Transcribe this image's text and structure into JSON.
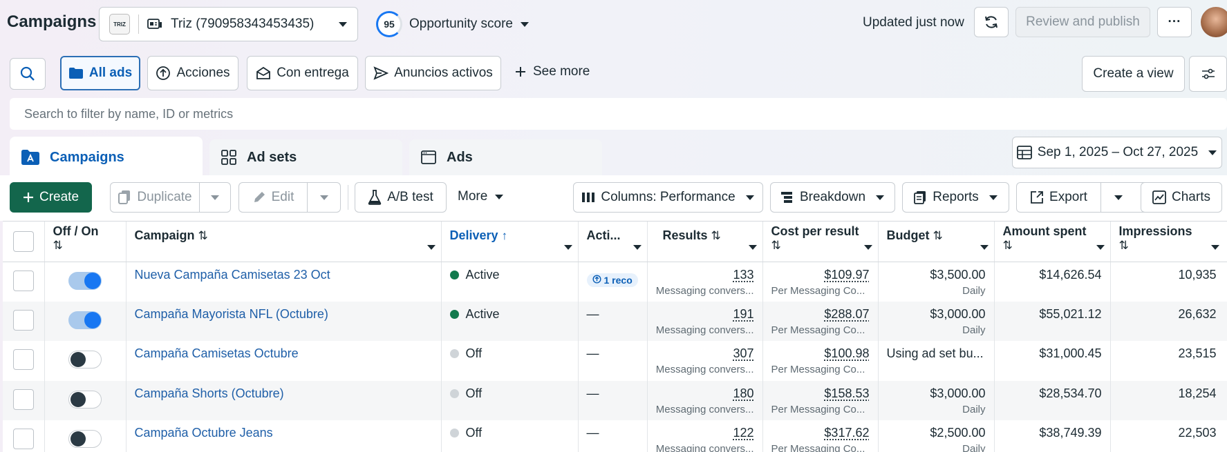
{
  "header": {
    "title": "Campaigns",
    "account_logo_text": "TRIZ",
    "account_name": "Triz (790958343453435)",
    "opportunity_score_value": "95",
    "opportunity_score_label": "Opportunity score",
    "updated_text": "Updated just now",
    "review_label": "Review and publish",
    "more_label": "···"
  },
  "filters": {
    "all_ads": "All ads",
    "acciones": "Acciones",
    "con_entrega": "Con entrega",
    "anuncios_activos": "Anuncios activos",
    "see_more": "See more",
    "create_view": "Create a view",
    "search_placeholder": "Search to filter by name, ID or metrics"
  },
  "tabs": {
    "campaigns": "Campaigns",
    "ad_sets": "Ad sets",
    "ads": "Ads"
  },
  "date_range": "Sep 1, 2025 – Oct 27, 2025",
  "toolbar": {
    "create": "Create",
    "duplicate": "Duplicate",
    "edit": "Edit",
    "ab_test": "A/B test",
    "more": "More",
    "columns": "Columns: Performance",
    "breakdown": "Breakdown",
    "reports": "Reports",
    "export": "Export",
    "charts": "Charts"
  },
  "table": {
    "headers": {
      "off_on": "Off / On",
      "campaign": "Campaign",
      "delivery": "Delivery",
      "actions": "Acti...",
      "results": "Results",
      "cost_per_result": "Cost per result",
      "budget": "Budget",
      "amount_spent": "Amount spent",
      "impressions": "Impressions"
    },
    "rows": [
      {
        "on": true,
        "name": "Nueva Campaña Camisetas 23 Oct",
        "delivery": "Active",
        "delivery_status": "active",
        "action": "1 reco",
        "results": "133",
        "results_sub": "Messaging convers...",
        "cost": "$109.97",
        "cost_sub": "Per Messaging Co...",
        "budget": "$3,500.00",
        "budget_sub": "Daily",
        "spent": "$14,626.54",
        "impressions": "10,935"
      },
      {
        "on": true,
        "name": "Campaña Mayorista NFL (Octubre)",
        "delivery": "Active",
        "delivery_status": "active",
        "action": "—",
        "results": "191",
        "results_sub": "Messaging convers...",
        "cost": "$288.07",
        "cost_sub": "Per Messaging Co...",
        "budget": "$3,000.00",
        "budget_sub": "Daily",
        "spent": "$55,021.12",
        "impressions": "26,632"
      },
      {
        "on": false,
        "name": "Campaña Camisetas Octubre",
        "delivery": "Off",
        "delivery_status": "off",
        "action": "—",
        "results": "307",
        "results_sub": "Messaging convers...",
        "cost": "$100.98",
        "cost_sub": "Per Messaging Co...",
        "budget": "Using ad set bu...",
        "budget_sub": "",
        "spent": "$31,000.45",
        "impressions": "23,515"
      },
      {
        "on": false,
        "name": "Campaña Shorts (Octubre)",
        "delivery": "Off",
        "delivery_status": "off",
        "action": "—",
        "results": "180",
        "results_sub": "Messaging convers...",
        "cost": "$158.53",
        "cost_sub": "Per Messaging Co...",
        "budget": "$3,000.00",
        "budget_sub": "Daily",
        "spent": "$28,534.70",
        "impressions": "18,254"
      },
      {
        "on": false,
        "name": "Campaña Octubre Jeans",
        "delivery": "Off",
        "delivery_status": "off",
        "action": "—",
        "results": "122",
        "results_sub": "Messaging convers...",
        "cost": "$317.62",
        "cost_sub": "Per Messaging Co...",
        "budget": "$2,500.00",
        "budget_sub": "Daily",
        "spent": "$38,749.39",
        "impressions": "22,503"
      }
    ]
  },
  "colors": {
    "primary_blue": "#0b5fb6",
    "create_green": "#13664c",
    "active_green": "#127a4d",
    "off_gray": "#cfd4d8"
  }
}
